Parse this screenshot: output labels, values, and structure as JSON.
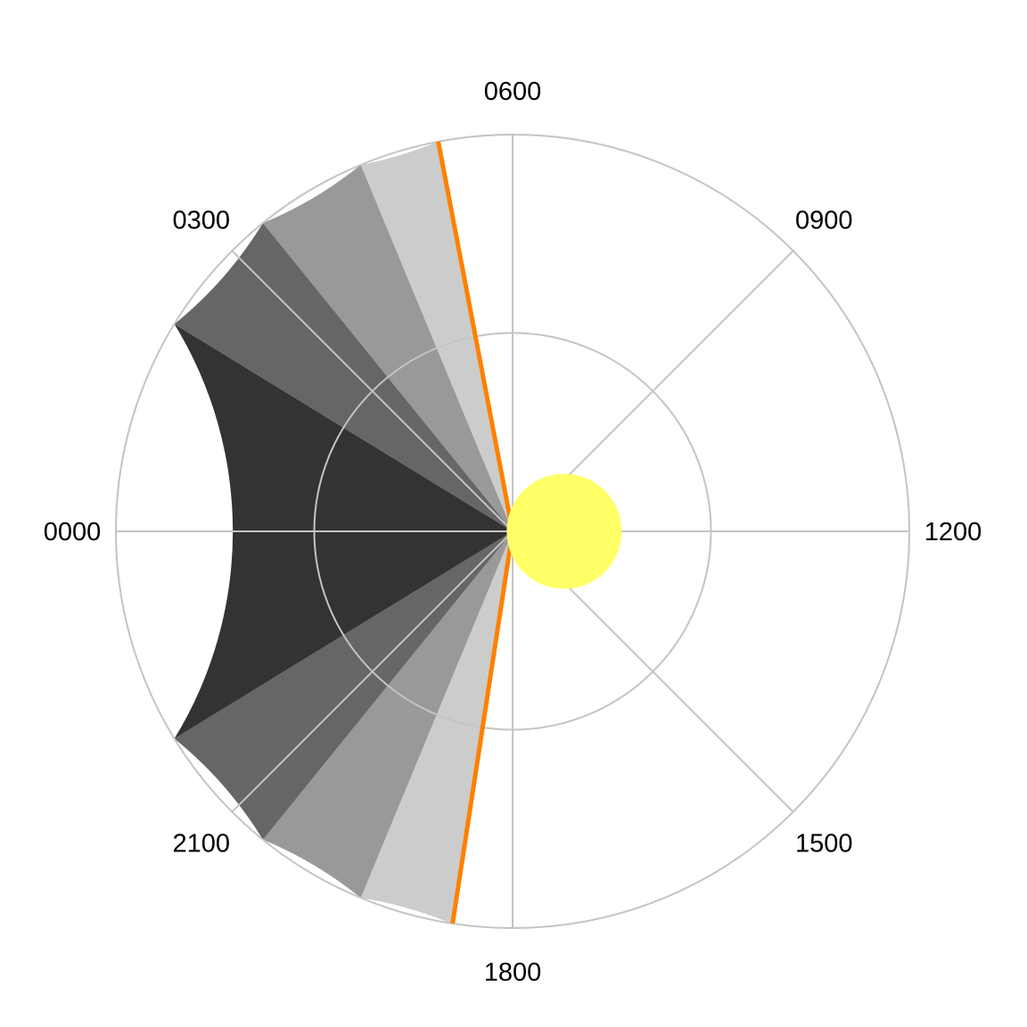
{
  "chart_data": {
    "type": "polar-area",
    "title": "",
    "angular_axis": {
      "unit": "hour",
      "period": 24,
      "ticks": [
        {
          "hour": 0,
          "label": "0000"
        },
        {
          "hour": 3,
          "label": "0300"
        },
        {
          "hour": 6,
          "label": "0600"
        },
        {
          "hour": 9,
          "label": "0900"
        },
        {
          "hour": 12,
          "label": "1200"
        },
        {
          "hour": 15,
          "label": "1500"
        },
        {
          "hour": 18,
          "label": "1800"
        },
        {
          "hour": 21,
          "label": "2100"
        }
      ]
    },
    "radial_axis": {
      "max": 1.0,
      "gridlines": [
        0.5,
        1.0
      ],
      "tick_labels_shown": false
    },
    "sectors": [
      {
        "start": 18.6,
        "end": 19.5,
        "r": 1.0,
        "color": "#cccccc"
      },
      {
        "start": 19.5,
        "end": 20.6,
        "r": 1.0,
        "color": "#999999"
      },
      {
        "start": 20.6,
        "end": 21.9,
        "r": 1.0,
        "color": "#666666"
      },
      {
        "start": 21.9,
        "end": 2.1,
        "r": 1.0,
        "color": "#333333"
      },
      {
        "start": 2.1,
        "end": 3.4,
        "r": 1.0,
        "color": "#666666"
      },
      {
        "start": 3.4,
        "end": 4.5,
        "r": 1.0,
        "color": "#999999"
      },
      {
        "start": 4.5,
        "end": 5.27,
        "r": 1.0,
        "color": "#cccccc"
      }
    ],
    "markers": [
      {
        "kind": "radial-line",
        "hour": 5.28,
        "r": 1.0,
        "color": "#ff8000"
      },
      {
        "kind": "radial-line",
        "hour": 18.58,
        "r": 1.0,
        "color": "#ff8000"
      }
    ],
    "sun": {
      "hour": 12.0,
      "r": 0.13,
      "size": 0.29,
      "color": "#ffff66"
    },
    "colors": {
      "grid": "#c4c4c4",
      "background": "#ffffff"
    }
  }
}
